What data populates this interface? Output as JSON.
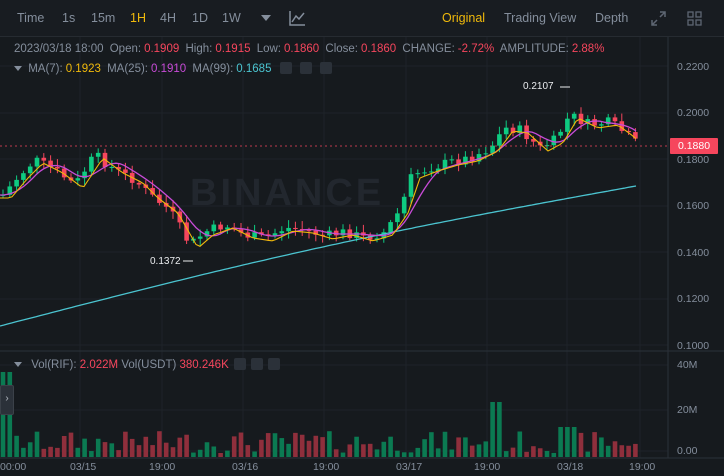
{
  "toolbar": {
    "intervals": [
      "Time",
      "1s",
      "15m",
      "1H",
      "4H",
      "1D",
      "1W"
    ],
    "active_interval": "1H",
    "views": [
      "Original",
      "Trading View",
      "Depth"
    ],
    "active_view": "Original",
    "icons": [
      "dropdown-caret-icon",
      "indicator-chart-icon",
      "fullscreen-icon",
      "grid-layout-icon"
    ]
  },
  "ohlc": {
    "datetime": "2023/03/18 18:00",
    "open_label": "Open:",
    "open": "0.1909",
    "high_label": "High:",
    "high": "0.1915",
    "low_label": "Low:",
    "low": "0.1860",
    "close_label": "Close:",
    "close": "0.1860",
    "change_label": "CHANGE:",
    "change": "-2.72%",
    "amplitude_label": "AMPLITUDE:",
    "amplitude": "2.88%"
  },
  "ma": {
    "ma7_label": "MA(7):",
    "ma7": "0.1923",
    "ma25_label": "MA(25):",
    "ma25": "0.1910",
    "ma99_label": "MA(99):",
    "ma99": "0.1685"
  },
  "volume": {
    "rif_label": "Vol(RIF):",
    "rif": "2.022M",
    "usdt_label": "Vol(USDT)",
    "usdt": "380.246K"
  },
  "price_axis": [
    "0.2200",
    "0.2000",
    "0.1800",
    "0.1600",
    "0.1400",
    "0.1200",
    "0.1000"
  ],
  "volume_axis": [
    "40M",
    "20M",
    "0.00"
  ],
  "time_axis": [
    "00:00",
    "03/15",
    "19:00",
    "03/16",
    "19:00",
    "03/17",
    "19:00",
    "03/18",
    "19:00"
  ],
  "current_price": "0.1880",
  "annotations": {
    "high": "0.2107",
    "low": "0.1372"
  },
  "watermark": "BINANCE",
  "side_tab": "›",
  "colors": {
    "up": "#0ecb81",
    "down": "#f6465d",
    "ma7": "#f0b90b",
    "ma25": "#c84bd7",
    "ma99": "#4bc4d0",
    "accent": "#f0b90b"
  }
}
